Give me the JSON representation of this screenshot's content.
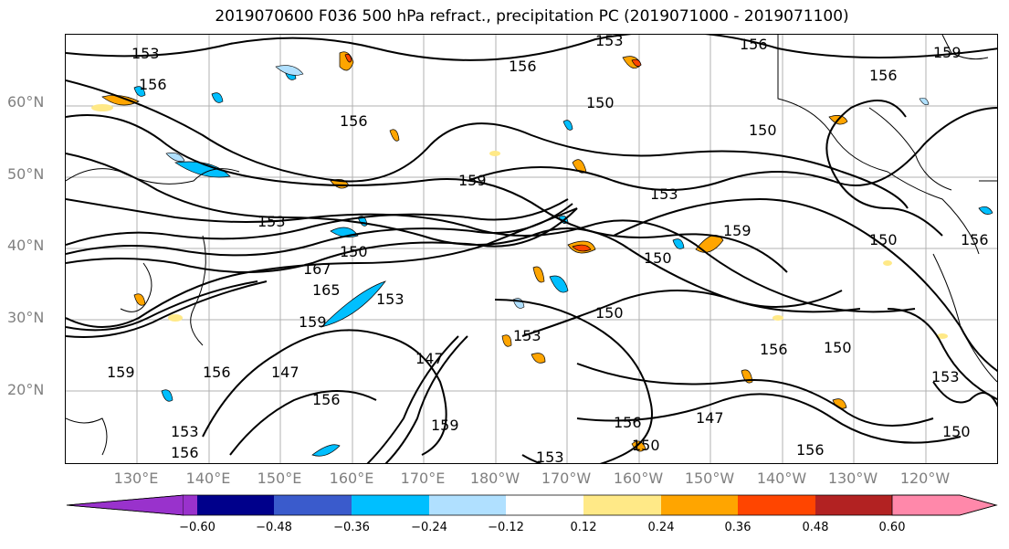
{
  "title": "2019070600 F036 500 hPa refract., precipitation PC (2019071000 - 2019071100)",
  "lat_labels": [
    "60°N",
    "50°N",
    "40°N",
    "30°N",
    "20°N"
  ],
  "lon_labels": [
    "130°E",
    "140°E",
    "150°E",
    "160°E",
    "170°E",
    "180°W",
    "170°W",
    "160°W",
    "150°W",
    "140°W",
    "130°W",
    "120°W"
  ],
  "contour_labels": [
    "153",
    "156",
    "156",
    "156",
    "159",
    "156",
    "153",
    "150",
    "150",
    "153",
    "159",
    "156",
    "153",
    "150",
    "159",
    "150",
    "150",
    "167",
    "165",
    "153",
    "150",
    "159",
    "153",
    "159",
    "156",
    "147",
    "156",
    "150",
    "156",
    "147",
    "159",
    "153",
    "156",
    "153",
    "156",
    "150",
    "147",
    "156",
    "153",
    "150",
    "156"
  ],
  "colorbar": {
    "ticks": [
      "−0.60",
      "−0.48",
      "−0.36",
      "−0.24",
      "−0.12",
      "0.12",
      "0.24",
      "0.36",
      "0.48",
      "0.60"
    ],
    "colors": [
      "#9932cc",
      "#00008b",
      "#3a5bcc",
      "#00bfff",
      "#b0e0ff",
      "#ffffff",
      "#ffe987",
      "#ffa500",
      "#ff4500",
      "#b22222",
      "#ff88aa"
    ]
  }
}
